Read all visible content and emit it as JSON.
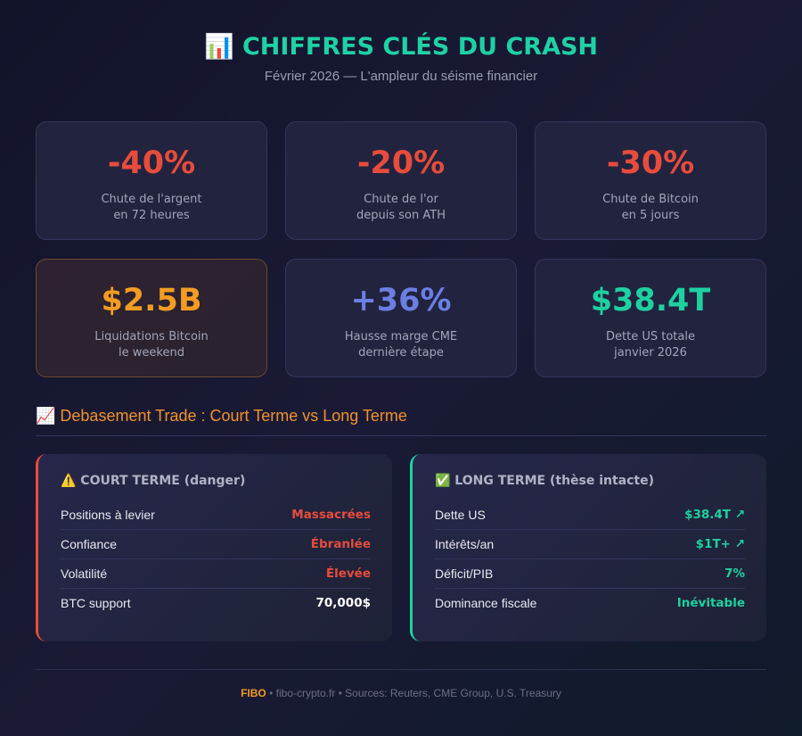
{
  "header": {
    "title": "📊 CHIFFRES CLÉS DU CRASH",
    "subtitle": "Février 2026 — L'ampleur du séisme financier"
  },
  "stats": [
    {
      "value": "-40%",
      "label": [
        "Chute de l'argent",
        "en 72 heures"
      ]
    },
    {
      "value": "-20%",
      "label": [
        "Chute de l'or",
        "depuis son ATH"
      ]
    },
    {
      "value": "-30%",
      "label": [
        "Chute de Bitcoin",
        "en 5 jours"
      ]
    },
    {
      "value": "$2.5B",
      "label": [
        "Liquidations Bitcoin",
        "le weekend"
      ]
    },
    {
      "value": "+36%",
      "label": [
        "Hausse marge CME",
        "dernière étape"
      ]
    },
    {
      "value": "$38.4T",
      "label": [
        "Dette US totale",
        "janvier 2026"
      ]
    }
  ],
  "section": {
    "title": "📈 Debasement Trade : Court Terme vs Long Terme"
  },
  "panels": [
    {
      "title": "⚠️ COURT TERME (danger)",
      "rows": [
        [
          "Positions à levier",
          "Massacrées"
        ],
        [
          "Confiance",
          "Ébranlée"
        ],
        [
          "Volatilité",
          "Élevée"
        ],
        [
          "BTC support",
          "70,000$"
        ]
      ]
    },
    {
      "title": "✅ LONG TERME (thèse intacte)",
      "rows": [
        [
          "Dette US",
          "$38.4T ↗"
        ],
        [
          "Intérêts/an",
          "$1T+ ↗"
        ],
        [
          "Déficit/PIB",
          "7%"
        ],
        [
          "Dominance fiscale",
          "Inévitable"
        ]
      ]
    }
  ],
  "footer": {
    "brand": "FIBO",
    "text": " • fibo-crypto.fr • Sources: Reuters, CME Group, U.S. Treasury"
  }
}
